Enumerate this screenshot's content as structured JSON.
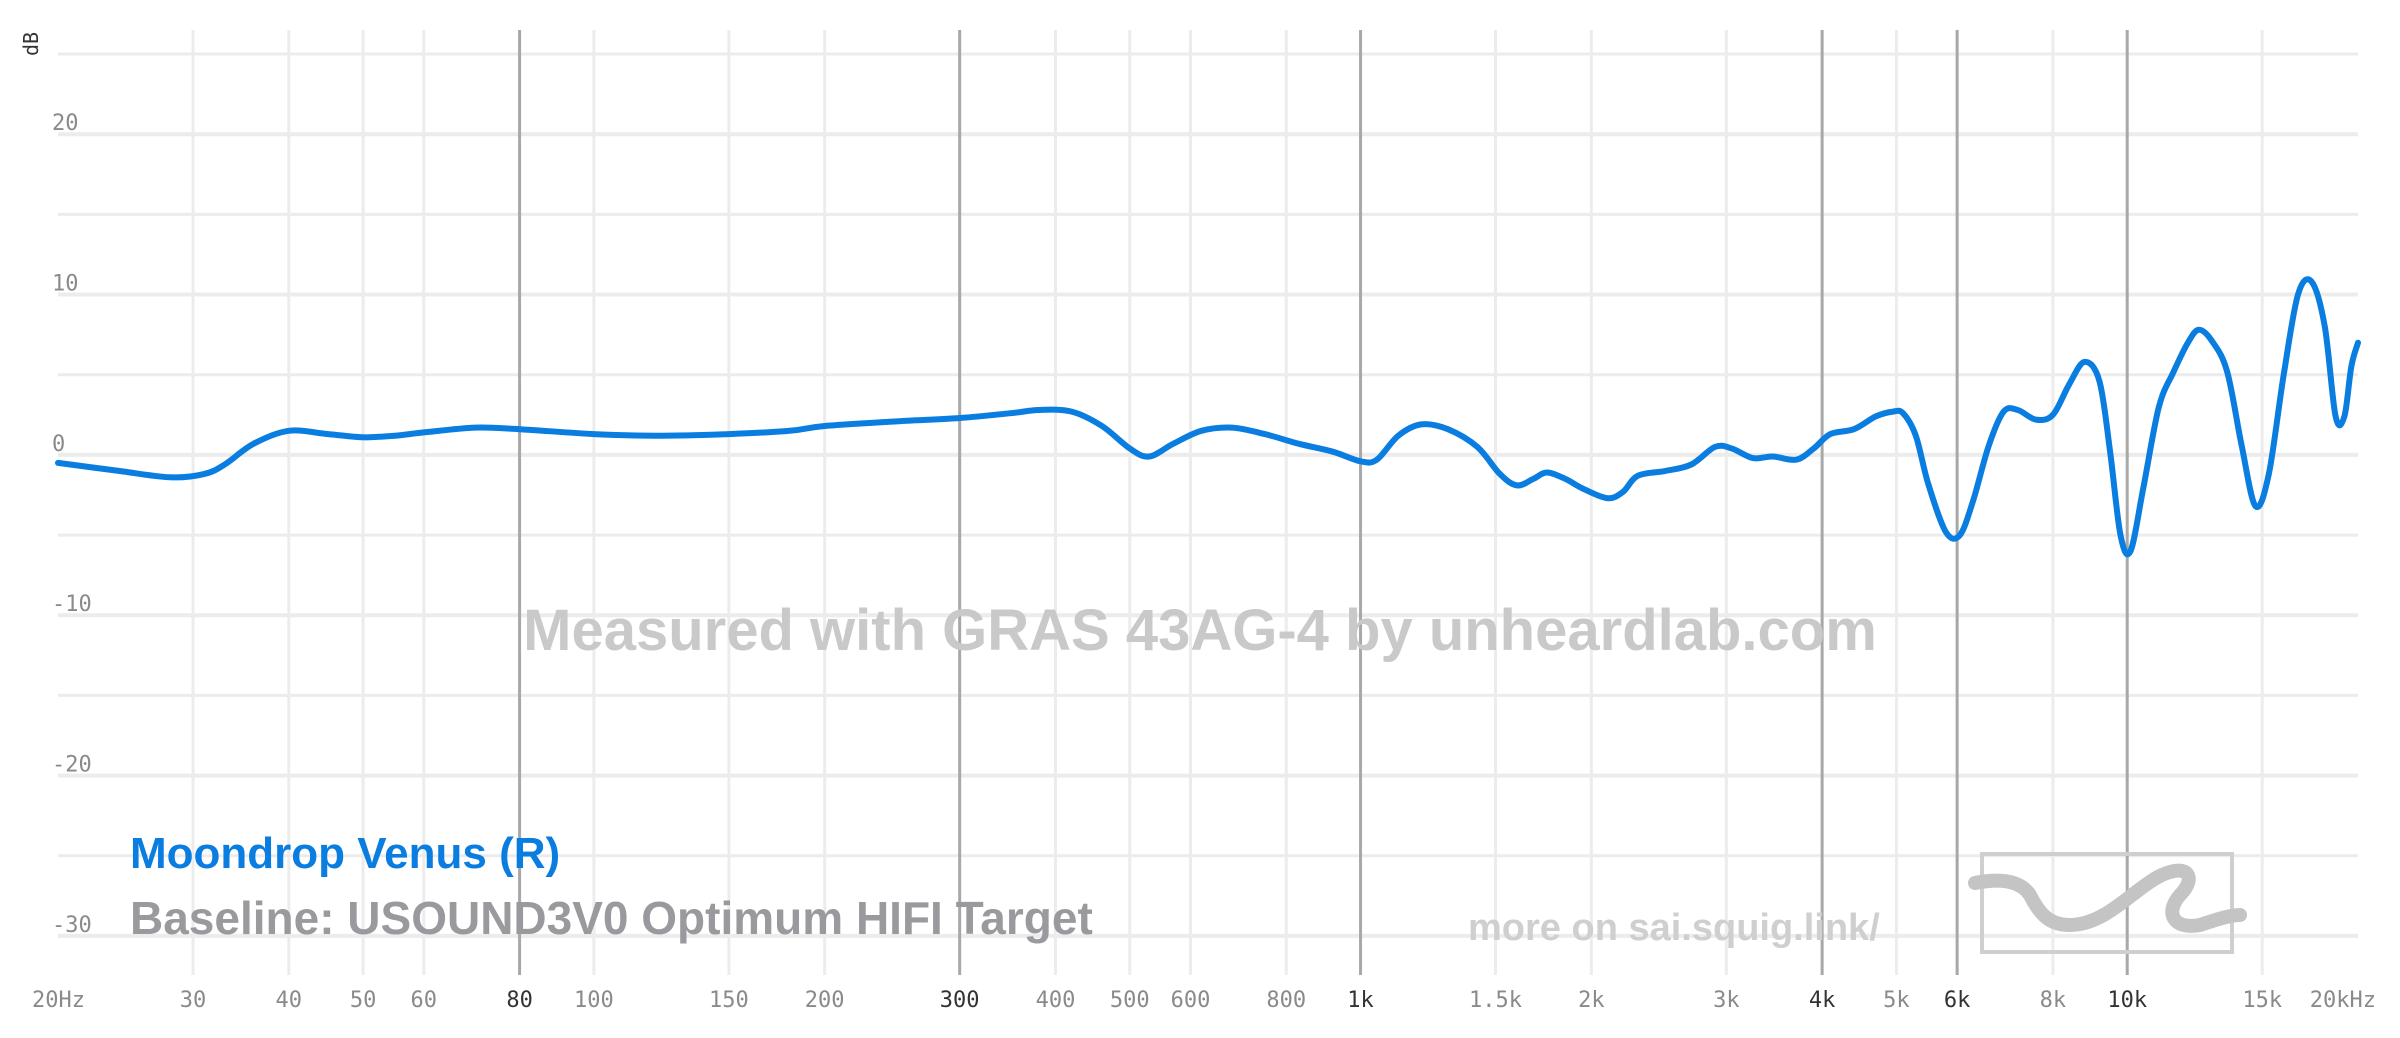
{
  "chart_data": {
    "type": "line",
    "title": "",
    "ylabel": "dB",
    "xscale": "log",
    "xlim": [
      20,
      20000
    ],
    "ylim": [
      -32,
      26
    ],
    "y_ticks": [
      {
        "value": 20,
        "label": "20"
      },
      {
        "value": 10,
        "label": "10"
      },
      {
        "value": 0,
        "label": "0"
      },
      {
        "value": -10,
        "label": "-10"
      },
      {
        "value": -20,
        "label": "-20"
      },
      {
        "value": -30,
        "label": "-30"
      }
    ],
    "x_ticks": [
      {
        "value": 20,
        "label": "20Hz",
        "major": false
      },
      {
        "value": 30,
        "label": "30",
        "major": false
      },
      {
        "value": 40,
        "label": "40",
        "major": false
      },
      {
        "value": 50,
        "label": "50",
        "major": false
      },
      {
        "value": 60,
        "label": "60",
        "major": false
      },
      {
        "value": 80,
        "label": "80",
        "major": true
      },
      {
        "value": 100,
        "label": "100",
        "major": false
      },
      {
        "value": 150,
        "label": "150",
        "major": false
      },
      {
        "value": 200,
        "label": "200",
        "major": false
      },
      {
        "value": 300,
        "label": "300",
        "major": true
      },
      {
        "value": 400,
        "label": "400",
        "major": false
      },
      {
        "value": 500,
        "label": "500",
        "major": false
      },
      {
        "value": 600,
        "label": "600",
        "major": false
      },
      {
        "value": 800,
        "label": "800",
        "major": false
      },
      {
        "value": 1000,
        "label": "1k",
        "major": true
      },
      {
        "value": 1500,
        "label": "1.5k",
        "major": false
      },
      {
        "value": 2000,
        "label": "2k",
        "major": false
      },
      {
        "value": 3000,
        "label": "3k",
        "major": false
      },
      {
        "value": 4000,
        "label": "4k",
        "major": true
      },
      {
        "value": 5000,
        "label": "5k",
        "major": false
      },
      {
        "value": 6000,
        "label": "6k",
        "major": true
      },
      {
        "value": 8000,
        "label": "8k",
        "major": false
      },
      {
        "value": 10000,
        "label": "10k",
        "major": true
      },
      {
        "value": 15000,
        "label": "15k",
        "major": false
      },
      {
        "value": 20000,
        "label": "20kHz",
        "major": false
      }
    ],
    "grid": true,
    "legend_position": "bottom-left",
    "series": [
      {
        "name": "Moondrop Venus (R)",
        "color": "#0a7de0",
        "points": [
          [
            20,
            -0.5
          ],
          [
            24,
            -1.0
          ],
          [
            28,
            -1.4
          ],
          [
            31,
            -1.2
          ],
          [
            33,
            -0.6
          ],
          [
            36,
            0.7
          ],
          [
            40,
            1.5
          ],
          [
            45,
            1.3
          ],
          [
            50,
            1.1
          ],
          [
            55,
            1.2
          ],
          [
            60,
            1.4
          ],
          [
            70,
            1.7
          ],
          [
            80,
            1.6
          ],
          [
            100,
            1.3
          ],
          [
            120,
            1.2
          ],
          [
            150,
            1.3
          ],
          [
            180,
            1.5
          ],
          [
            200,
            1.8
          ],
          [
            250,
            2.1
          ],
          [
            300,
            2.3
          ],
          [
            350,
            2.6
          ],
          [
            380,
            2.8
          ],
          [
            420,
            2.7
          ],
          [
            460,
            1.8
          ],
          [
            500,
            0.4
          ],
          [
            530,
            -0.1
          ],
          [
            570,
            0.7
          ],
          [
            620,
            1.5
          ],
          [
            680,
            1.7
          ],
          [
            750,
            1.3
          ],
          [
            830,
            0.7
          ],
          [
            920,
            0.2
          ],
          [
            1000,
            -0.4
          ],
          [
            1050,
            -0.3
          ],
          [
            1120,
            1.2
          ],
          [
            1200,
            1.9
          ],
          [
            1300,
            1.6
          ],
          [
            1420,
            0.5
          ],
          [
            1520,
            -1.2
          ],
          [
            1600,
            -1.9
          ],
          [
            1680,
            -1.5
          ],
          [
            1750,
            -1.1
          ],
          [
            1850,
            -1.5
          ],
          [
            1950,
            -2.1
          ],
          [
            2100,
            -2.7
          ],
          [
            2200,
            -2.3
          ],
          [
            2300,
            -1.3
          ],
          [
            2500,
            -1.0
          ],
          [
            2700,
            -0.6
          ],
          [
            2900,
            0.5
          ],
          [
            3050,
            0.4
          ],
          [
            3250,
            -0.2
          ],
          [
            3450,
            -0.1
          ],
          [
            3700,
            -0.3
          ],
          [
            3900,
            0.4
          ],
          [
            4100,
            1.3
          ],
          [
            4400,
            1.6
          ],
          [
            4700,
            2.4
          ],
          [
            4950,
            2.7
          ],
          [
            5100,
            2.6
          ],
          [
            5300,
            1.2
          ],
          [
            5500,
            -1.8
          ],
          [
            5800,
            -4.8
          ],
          [
            6050,
            -5.0
          ],
          [
            6300,
            -2.8
          ],
          [
            6600,
            0.6
          ],
          [
            6900,
            2.7
          ],
          [
            7200,
            2.8
          ],
          [
            7600,
            2.2
          ],
          [
            8000,
            2.5
          ],
          [
            8400,
            4.4
          ],
          [
            8800,
            5.8
          ],
          [
            9200,
            4.6
          ],
          [
            9500,
            0.2
          ],
          [
            9800,
            -5.0
          ],
          [
            10100,
            -6.0
          ],
          [
            10500,
            -2.0
          ],
          [
            11000,
            3.0
          ],
          [
            11500,
            5.2
          ],
          [
            12000,
            7.0
          ],
          [
            12400,
            7.8
          ],
          [
            12900,
            7.1
          ],
          [
            13500,
            5.2
          ],
          [
            14100,
            0.6
          ],
          [
            14700,
            -3.2
          ],
          [
            15300,
            -1.2
          ],
          [
            16000,
            5.0
          ],
          [
            16700,
            10.0
          ],
          [
            17400,
            10.8
          ],
          [
            18100,
            8.0
          ],
          [
            18700,
            2.4
          ],
          [
            19200,
            2.4
          ],
          [
            19600,
            5.5
          ],
          [
            20000,
            7.0
          ]
        ]
      }
    ]
  },
  "watermark": "Measured with GRAS 43AG-4 by unheardlab.com",
  "footer_link": "more on sai.squig.link/",
  "legend": {
    "main_label": "Moondrop Venus (R)",
    "baseline_label": "Baseline: USOUND3V0 Optimum HIFI Target",
    "main_color": "#0a7de0",
    "baseline_color": "#9a9a9e"
  },
  "colors": {
    "grid": "#ececec",
    "grid_major": "#a8a8a8",
    "background": "#ffffff"
  },
  "logo_icon": "squig-logo-icon"
}
